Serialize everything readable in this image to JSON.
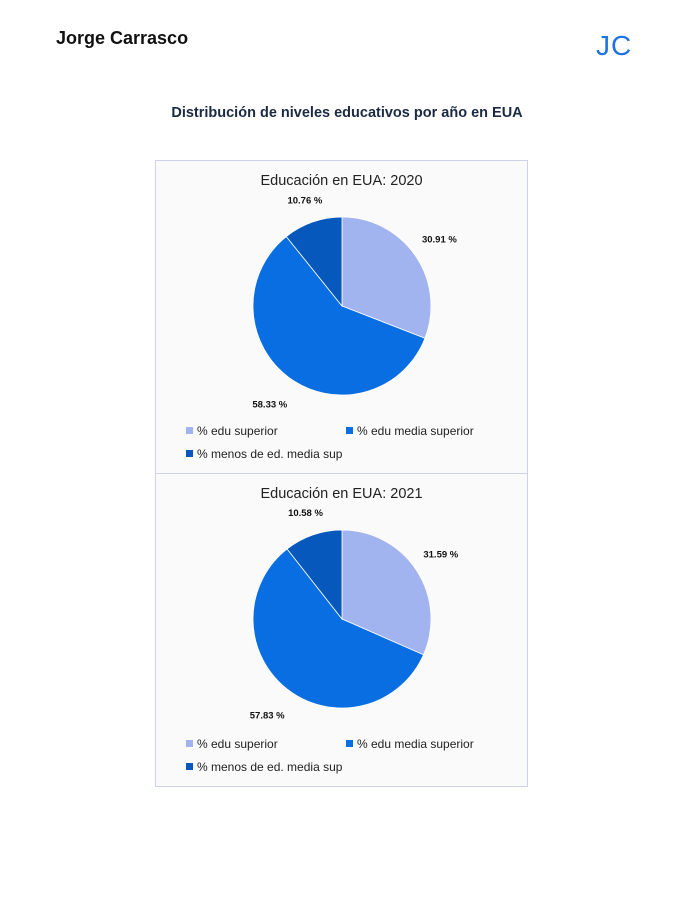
{
  "header": {
    "author": "Jorge Carrasco",
    "monogram": "JC"
  },
  "document": {
    "title": "Distribución de niveles educativos por año en EUA"
  },
  "colors": {
    "edu_superior": "#a2b4f0",
    "edu_media_superior": "#0a6ee3",
    "menos_media_sup": "#0758bd"
  },
  "chart_data": [
    {
      "type": "pie",
      "title": "Educación en EUA: 2020",
      "categories": [
        "% edu superior",
        "% edu media superior",
        "% menos de ed. media sup"
      ],
      "values": [
        30.91,
        58.33,
        10.76
      ],
      "labels": [
        "30.91 %",
        "58.33 %",
        "10.76 %"
      ],
      "legend_position": "bottom"
    },
    {
      "type": "pie",
      "title": "Educación en EUA: 2021",
      "categories": [
        "% edu superior",
        "% edu media superior",
        "% menos de ed. media sup"
      ],
      "values": [
        31.59,
        57.83,
        10.58
      ],
      "labels": [
        "31.59 %",
        "57.83 %",
        "10.58 %"
      ],
      "legend_position": "bottom"
    }
  ]
}
